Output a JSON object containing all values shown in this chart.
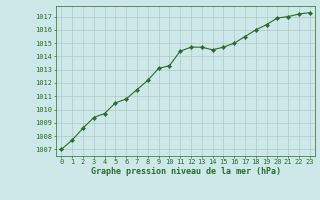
{
  "x": [
    0,
    1,
    2,
    3,
    4,
    5,
    6,
    7,
    8,
    9,
    10,
    11,
    12,
    13,
    14,
    15,
    16,
    17,
    18,
    19,
    20,
    21,
    22,
    23
  ],
  "y": [
    1007.0,
    1007.7,
    1008.6,
    1009.4,
    1009.7,
    1010.5,
    1010.8,
    1011.5,
    1012.2,
    1013.1,
    1013.3,
    1014.4,
    1014.7,
    1014.7,
    1014.5,
    1014.7,
    1015.0,
    1015.5,
    1016.0,
    1016.4,
    1016.9,
    1017.0,
    1017.2,
    1017.3
  ],
  "line_color": "#2d6a2d",
  "marker": "D",
  "marker_size": 2.2,
  "bg_color": "#cce8e8",
  "grid_color": "#b0c8c8",
  "xlabel": "Graphe pression niveau de la mer (hPa)",
  "xlabel_color": "#2d6a2d",
  "ylabel_ticks": [
    1007,
    1008,
    1009,
    1010,
    1011,
    1012,
    1013,
    1014,
    1015,
    1016,
    1017
  ],
  "ylim": [
    1006.5,
    1017.8
  ],
  "xlim": [
    -0.5,
    23.5
  ],
  "xticks": [
    0,
    1,
    2,
    3,
    4,
    5,
    6,
    7,
    8,
    9,
    10,
    11,
    12,
    13,
    14,
    15,
    16,
    17,
    18,
    19,
    20,
    21,
    22,
    23
  ],
  "tick_color": "#2d6a2d",
  "tick_fontsize": 5.0,
  "xlabel_fontsize": 6.0,
  "line_width": 0.8,
  "spine_color": "#2d6a2d"
}
